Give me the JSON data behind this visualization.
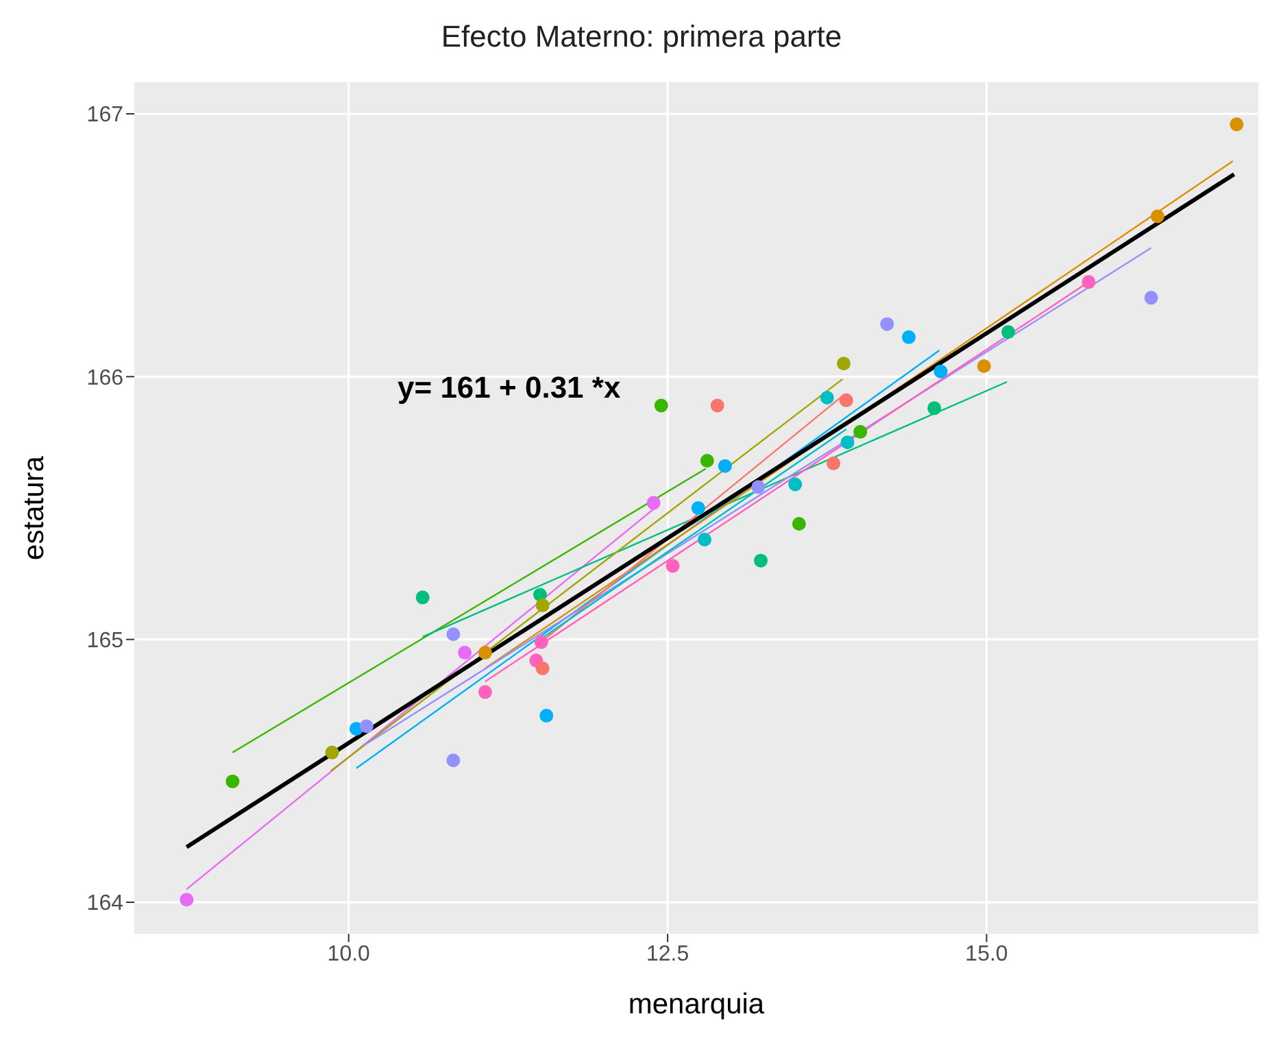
{
  "chart_data": {
    "type": "scatter",
    "title": "Efecto Materno: primera parte",
    "xlabel": "menarquia",
    "ylabel": "estatura",
    "xlim": [
      8.32,
      17.13
    ],
    "ylim": [
      163.88,
      167.12
    ],
    "xticks": [
      {
        "value": 10,
        "label": "10.0"
      },
      {
        "value": 12.5,
        "label": "12.5"
      },
      {
        "value": 15,
        "label": "15.0"
      }
    ],
    "yticks": [
      164,
      165,
      166,
      167
    ],
    "grid": true,
    "legend": false,
    "annotations": [
      "y= 161 + 0.31 *x"
    ],
    "series": [
      {
        "marker": "circle",
        "x": [
          8.73,
          9.09,
          9.87,
          10.06,
          10.14,
          10.58,
          10.82,
          10.82,
          10.91,
          11.07,
          11.07,
          11.51,
          11.47,
          11.52,
          11.55,
          11.5,
          11.52,
          12.45,
          12.39,
          16.96,
          16.34,
          15.8,
          16.29,
          14.22,
          14.39,
          13.88,
          15.17,
          14.64,
          14.98,
          12.89,
          13.75,
          13.9,
          12.81,
          12.95,
          13.5,
          13.8,
          13.91,
          14.01,
          14.59,
          12.74,
          13.21,
          13.53,
          13.23,
          12.79,
          12.54
        ],
        "values": [
          164.01,
          164.46,
          164.57,
          164.66,
          164.67,
          165.16,
          165.02,
          164.54,
          164.95,
          164.95,
          164.8,
          164.99,
          164.92,
          164.89,
          164.71,
          165.17,
          165.13,
          165.89,
          165.52,
          166.96,
          166.61,
          166.36,
          166.3,
          166.2,
          166.15,
          166.05,
          166.17,
          166.02,
          166.04,
          165.89,
          165.92,
          165.91,
          165.68,
          165.66,
          165.59,
          165.67,
          165.75,
          165.79,
          165.88,
          165.5,
          165.58,
          165.44,
          165.3,
          165.38,
          165.28
        ],
        "colors": [
          "#e76bf3",
          "#39b600",
          "#a3a500",
          "#00b0f6",
          "#9590ff",
          "#00bf7d",
          "#9590ff",
          "#9590ff",
          "#e76bf3",
          "#d89000",
          "#ff62bc",
          "#ff62bc",
          "#ff62bc",
          "#f8766d",
          "#00b0f6",
          "#00bf7d",
          "#a3a500",
          "#39b600",
          "#e76bf3",
          "#d89000",
          "#d89000",
          "#ff62bc",
          "#9590ff",
          "#9590ff",
          "#00b0f6",
          "#a3a500",
          "#00bf7d",
          "#00b0f6",
          "#d89000",
          "#f8766d",
          "#00bfc4",
          "#f8766d",
          "#39b600",
          "#00b0f6",
          "#00bfc4",
          "#f8766d",
          "#00bfc4",
          "#39b600",
          "#00bf7d",
          "#00b0f6",
          "#9590ff",
          "#39b600",
          "#00bf7d",
          "#00bfc4",
          "#ff62bc"
        ]
      },
      {
        "type": "line",
        "color": "#e76bf3",
        "x": [
          8.73,
          12.4
        ],
        "values": [
          164.05,
          165.5
        ]
      },
      {
        "type": "line",
        "color": "#39b600",
        "x": [
          9.09,
          12.8
        ],
        "values": [
          164.57,
          165.65
        ]
      },
      {
        "type": "line",
        "color": "#00bf7d",
        "x": [
          10.58,
          15.16
        ],
        "values": [
          165.01,
          165.98
        ]
      },
      {
        "type": "line",
        "color": "#a3a500",
        "x": [
          9.86,
          13.87
        ],
        "values": [
          164.5,
          165.99
        ]
      },
      {
        "type": "line",
        "color": "#00b0f6",
        "x": [
          10.06,
          14.63
        ],
        "values": [
          164.51,
          166.1
        ]
      },
      {
        "type": "line",
        "color": "#d89000",
        "x": [
          11.07,
          16.93
        ],
        "values": [
          164.89,
          166.82
        ]
      },
      {
        "type": "line",
        "color": "#9590ff",
        "x": [
          10.13,
          16.29
        ],
        "values": [
          164.6,
          166.49
        ]
      },
      {
        "type": "line",
        "color": "#ff62bc",
        "x": [
          11.07,
          15.8
        ],
        "values": [
          164.84,
          166.36
        ]
      },
      {
        "type": "line",
        "color": "#f8766d",
        "x": [
          11.51,
          13.88
        ],
        "values": [
          164.99,
          165.93
        ]
      },
      {
        "type": "line",
        "color": "#00bfc4",
        "x": [
          11.5,
          13.9
        ],
        "values": [
          165.0,
          165.8
        ]
      },
      {
        "type": "line",
        "color": "#000000",
        "x": [
          8.73,
          16.94
        ],
        "values": [
          164.21,
          166.77
        ]
      }
    ]
  }
}
